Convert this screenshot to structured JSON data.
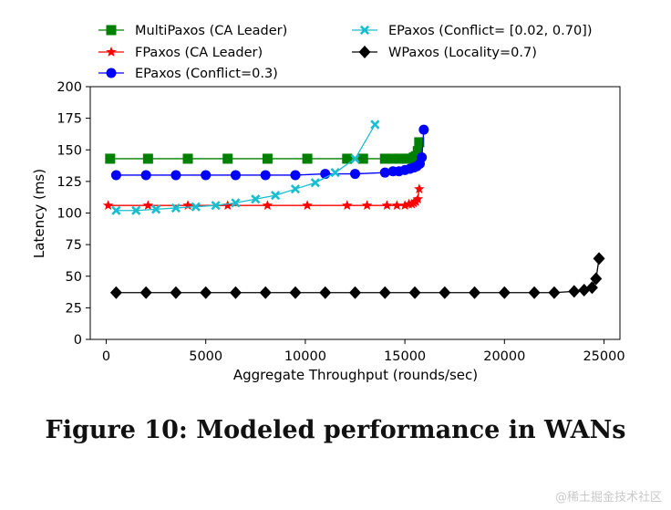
{
  "figure": {
    "caption": "Figure 10: Modeled performance in WANs",
    "watermark": "@稀土掘金技术社区"
  },
  "chart_data": {
    "type": "line",
    "xlabel": "Aggregate Throughput (rounds/sec)",
    "ylabel": "Latency (ms)",
    "xlim": [
      -800,
      25800
    ],
    "ylim": [
      0,
      200
    ],
    "xticks": [
      0,
      5000,
      10000,
      15000,
      20000,
      25000
    ],
    "yticks": [
      0,
      25,
      50,
      75,
      100,
      125,
      150,
      175,
      200
    ],
    "grid": false,
    "legend_position": "top",
    "series": [
      {
        "name": "MultiPaxos (CA Leader)",
        "color": "#008000",
        "marker": "square",
        "x": [
          200,
          2100,
          4100,
          6100,
          8100,
          10100,
          12100,
          12900,
          14000,
          14400,
          14700,
          15000,
          15200,
          15350,
          15450,
          15550,
          15650,
          15720
        ],
        "y": [
          143,
          143,
          143,
          143,
          143,
          143,
          143,
          143,
          143,
          143,
          143,
          143,
          143,
          143,
          144,
          145,
          149,
          156
        ]
      },
      {
        "name": "FPaxos (CA Leader)",
        "color": "#ff0000",
        "marker": "star",
        "x": [
          100,
          2100,
          4100,
          6100,
          8100,
          10100,
          12100,
          13100,
          14100,
          14600,
          15000,
          15200,
          15350,
          15450,
          15550,
          15650,
          15720
        ],
        "y": [
          106,
          106,
          106,
          106,
          106,
          106,
          106,
          106,
          106,
          106,
          106,
          107,
          107,
          108,
          109,
          111,
          119
        ]
      },
      {
        "name": "EPaxos (Conflict=0.3)",
        "color": "#0000ff",
        "marker": "circle",
        "x": [
          500,
          2000,
          3500,
          5000,
          6500,
          8000,
          9500,
          11000,
          12500,
          14000,
          14400,
          14700,
          15000,
          15250,
          15450,
          15600,
          15750,
          15850,
          15950
        ],
        "y": [
          130,
          130,
          130,
          130,
          130,
          130,
          130,
          131,
          131,
          132,
          133,
          133,
          134,
          135,
          136,
          137,
          139,
          144,
          166
        ]
      },
      {
        "name": "EPaxos (Conflict= [0.02, 0.70])",
        "color": "#17becf",
        "marker": "x",
        "x": [
          500,
          1500,
          2500,
          3500,
          4500,
          5500,
          6500,
          7500,
          8500,
          9500,
          10500,
          11500,
          12500,
          13500
        ],
        "y": [
          102,
          102,
          103,
          104,
          105,
          106,
          108,
          111,
          114,
          119,
          124,
          132,
          143,
          170
        ]
      },
      {
        "name": "WPaxos (Locality=0.7)",
        "color": "#000000",
        "marker": "diamond",
        "x": [
          500,
          2000,
          3500,
          5000,
          6500,
          8000,
          9500,
          11000,
          12500,
          14000,
          15500,
          17000,
          18500,
          20000,
          21500,
          22500,
          23500,
          24000,
          24400,
          24600,
          24750
        ],
        "y": [
          37,
          37,
          37,
          37,
          37,
          37,
          37,
          37,
          37,
          37,
          37,
          37,
          37,
          37,
          37,
          37,
          38,
          39,
          41,
          48,
          64
        ]
      }
    ]
  }
}
